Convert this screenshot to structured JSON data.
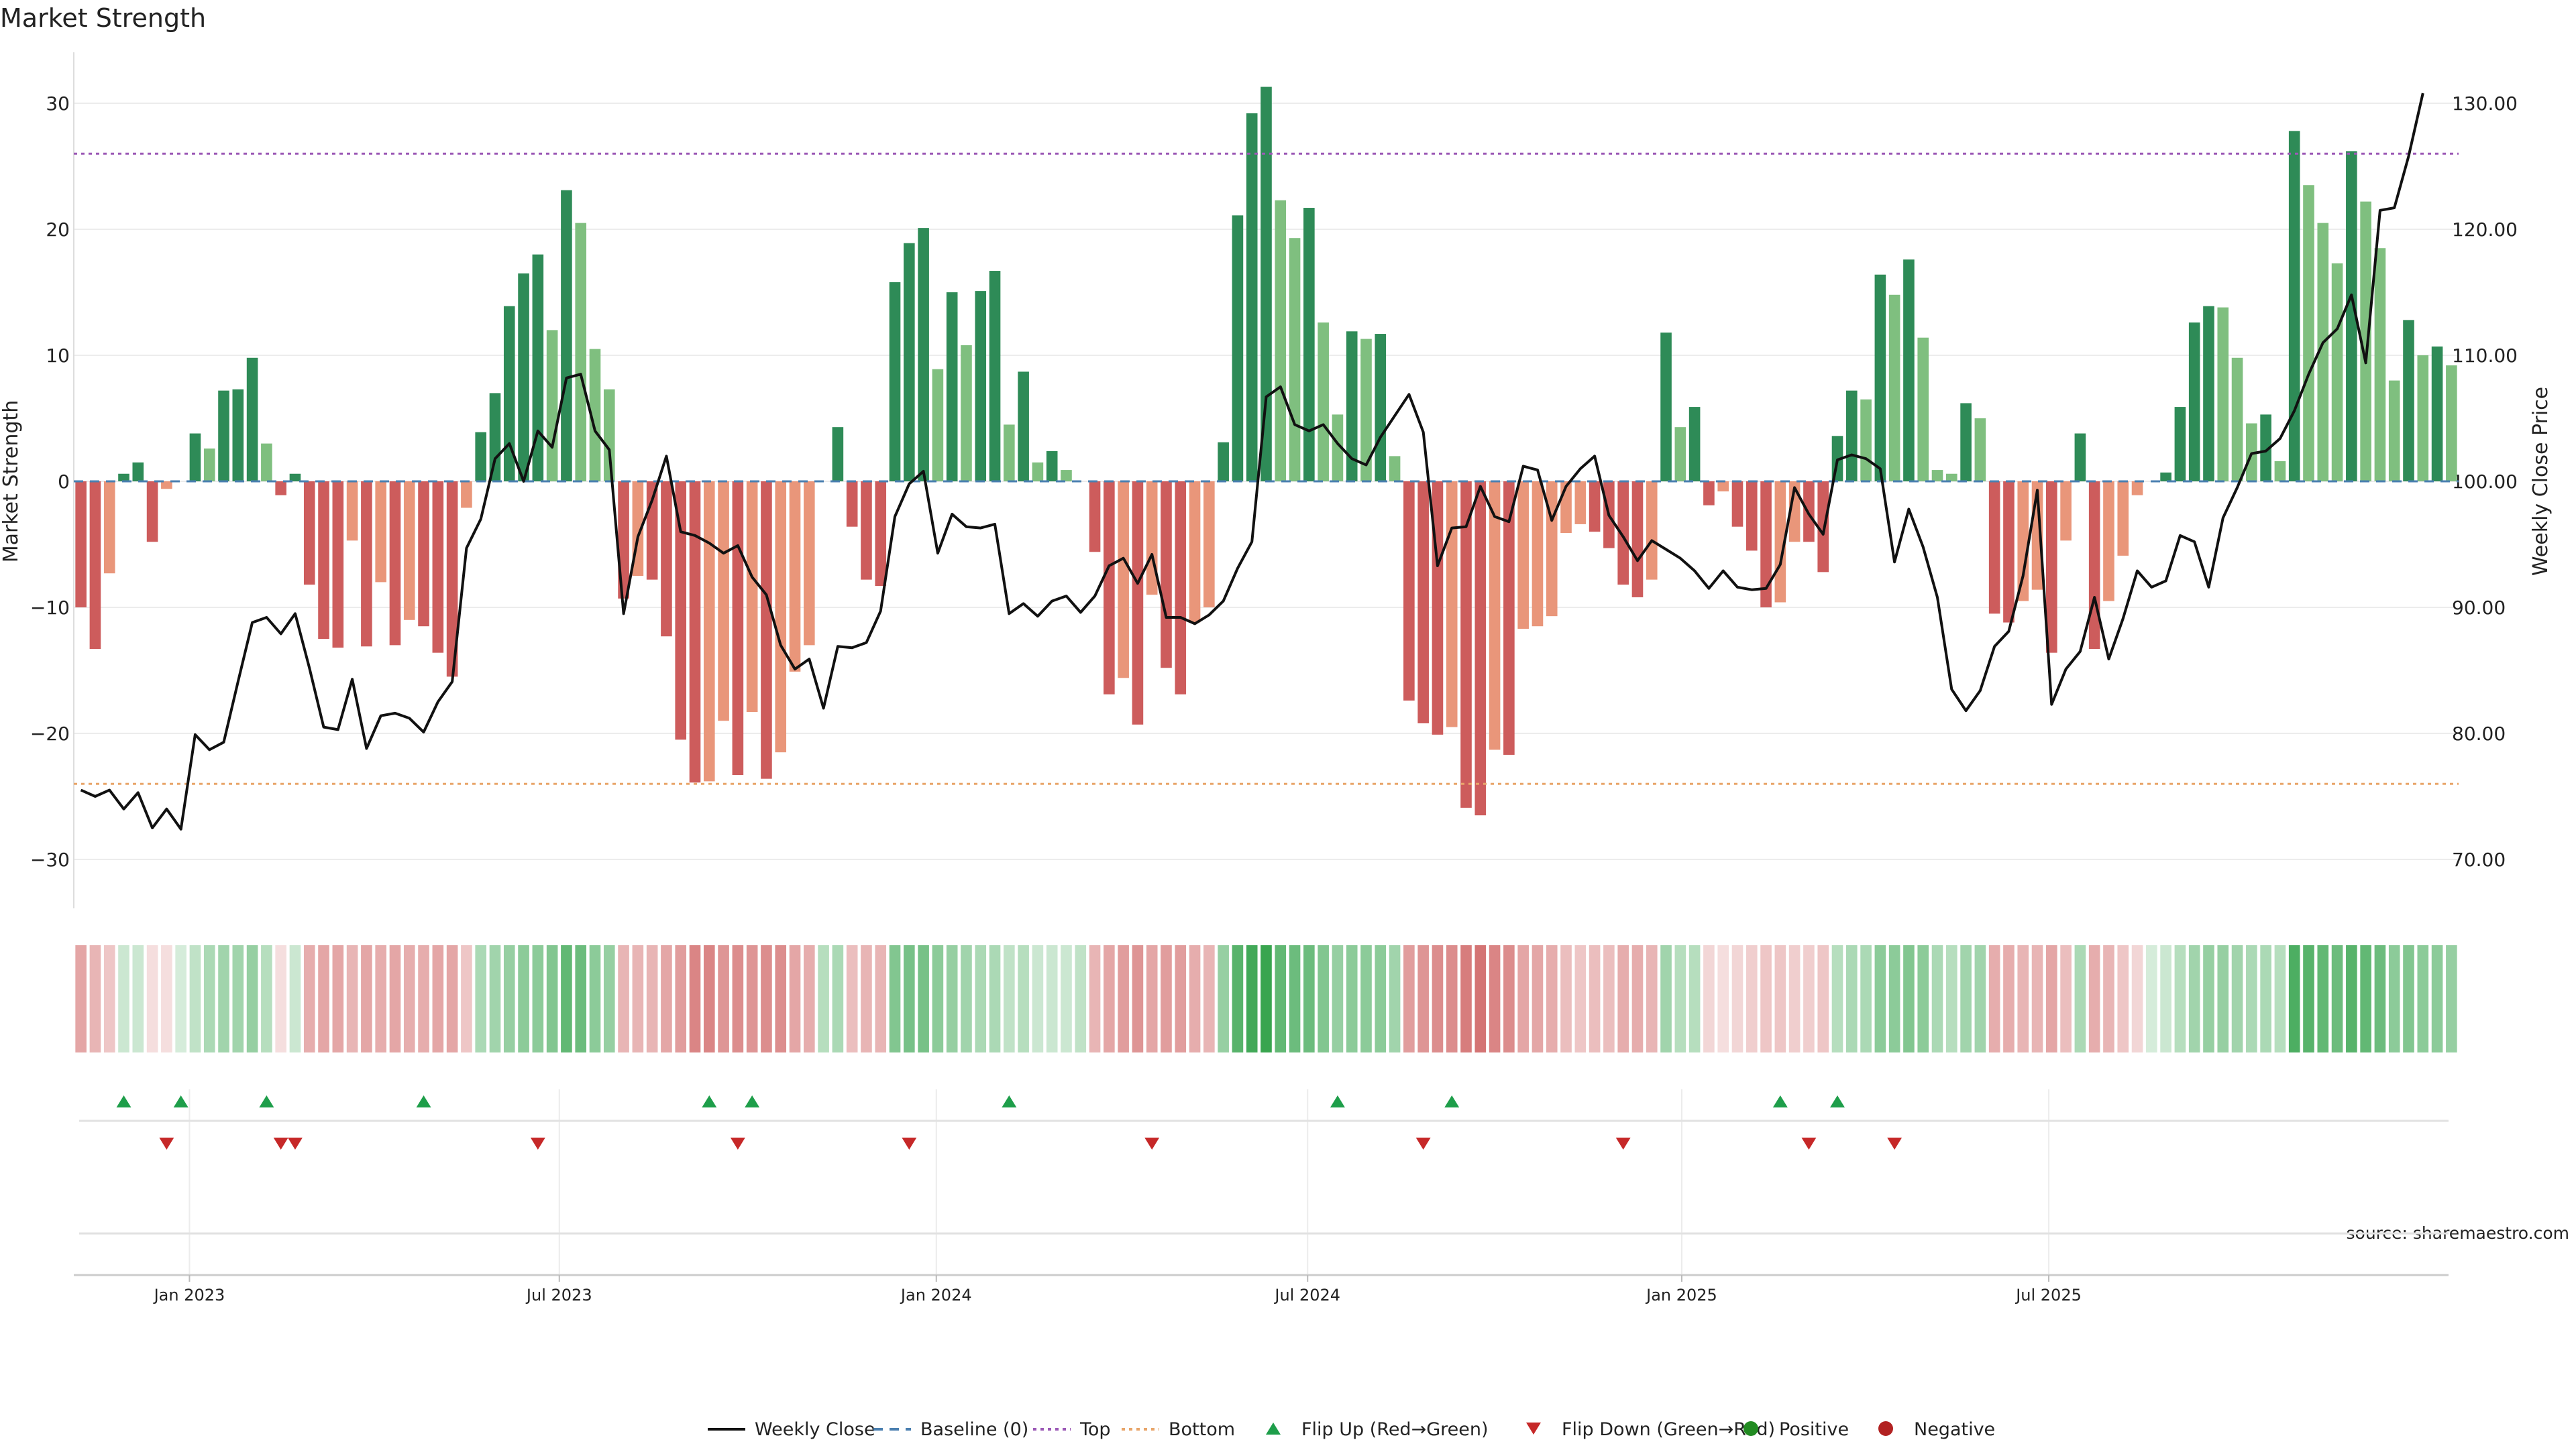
{
  "chart_data": {
    "type": "bar",
    "title": "Market Strength",
    "ylabel": "Market Strength",
    "y2label": "Weekly Close Price",
    "source": "source: sharemaestro.com",
    "ylim": [
      -34,
      34
    ],
    "y2lim": [
      66,
      134
    ],
    "yticks": [
      30,
      20,
      10,
      0,
      -10,
      -20,
      -30
    ],
    "y2ticks": [
      "130.00",
      "120.00",
      "110.00",
      "100.00",
      "90.00",
      "80.00",
      "70.00"
    ],
    "x_tick_labels": [
      {
        "label": "Jan 2023",
        "week": 7.6
      },
      {
        "label": "Jul 2023",
        "week": 33.5
      },
      {
        "label": "Jan 2024",
        "week": 59.9
      },
      {
        "label": "Jul 2024",
        "week": 85.9
      },
      {
        "label": "Jan 2025",
        "week": 112.1
      },
      {
        "label": "Jul 2025",
        "week": 137.8
      }
    ],
    "top_threshold": 26,
    "bottom_threshold": -24,
    "colors": {
      "dark_green": "#2e8b57",
      "light_green": "#7fbf7f",
      "dark_red": "#cd5c5c",
      "light_red": "#e9967a",
      "price_line": "#111111",
      "baseline": "#4a7fb0",
      "top": "#9b59b6",
      "bottom": "#e8a56a",
      "flip_up": "#1e9e4a",
      "flip_down": "#c62828",
      "positive": "#228b22",
      "negative": "#b22222"
    },
    "strength": [
      -10,
      -13.3,
      -7.3,
      0.6,
      1.5,
      -4.8,
      -0.6,
      0,
      3.8,
      2.6,
      7.2,
      7.3,
      9.8,
      3.0,
      -1.1,
      0.6,
      -8.2,
      -12.5,
      -13.2,
      -4.7,
      -13.1,
      -8.0,
      -13.0,
      -11.0,
      -11.5,
      -13.6,
      -15.5,
      -2.1,
      3.9,
      7.0,
      13.9,
      16.5,
      18.0,
      12.0,
      23.1,
      20.5,
      10.5,
      7.3,
      -9.3,
      -7.5,
      -7.8,
      -12.3,
      -20.5,
      -23.9,
      -23.8,
      -19.0,
      -23.3,
      -18.3,
      -23.6,
      -21.5,
      -15.1,
      -13.0,
      0,
      4.3,
      -3.6,
      -7.8,
      -8.3,
      15.8,
      18.9,
      20.1,
      8.9,
      15.0,
      10.8,
      15.1,
      16.7,
      4.5,
      8.7,
      1.5,
      2.4,
      0.9,
      0,
      -5.6,
      -16.9,
      -15.6,
      -19.3,
      -9.0,
      -14.8,
      -16.9,
      -11.2,
      -10.0,
      3.1,
      21.1,
      29.2,
      31.3,
      22.3,
      19.3,
      21.7,
      12.6,
      5.3,
      11.9,
      11.3,
      11.7,
      2.0,
      -17.4,
      -19.2,
      -20.1,
      -19.5,
      -25.9,
      -26.5,
      -21.3,
      -21.7,
      -11.7,
      -11.5,
      -10.7,
      -4.1,
      -3.4,
      -4.0,
      -5.3,
      -8.2,
      -9.2,
      -7.8,
      11.8,
      4.3,
      5.9,
      -1.9,
      -0.8,
      -3.6,
      -5.5,
      -10.0,
      -9.6,
      -4.8,
      -4.8,
      -7.2,
      3.6,
      7.2,
      6.5,
      16.4,
      14.8,
      17.6,
      11.4,
      0.9,
      0.6,
      6.2,
      5.0,
      -10.5,
      -11.2,
      -9.5,
      -8.6,
      -13.6,
      -4.7,
      3.8,
      -13.3,
      -9.5,
      -5.9,
      -1.1,
      0,
      0.7,
      5.9,
      12.6,
      13.9,
      13.8,
      9.8,
      4.6,
      5.3,
      1.6,
      27.8,
      23.5,
      20.5,
      17.3,
      26.2,
      22.2,
      18.5,
      8.0,
      12.8,
      10.0,
      10.7,
      9.2
    ],
    "price": [
      75.5,
      75.0,
      75.5,
      74.0,
      75.3,
      72.5,
      74.0,
      72.4,
      79.9,
      78.7,
      79.3,
      84.1,
      88.8,
      89.2,
      87.9,
      89.5,
      85.2,
      80.5,
      80.3,
      84.3,
      78.8,
      81.4,
      81.6,
      81.2,
      80.1,
      82.5,
      84.1,
      94.7,
      97.0,
      101.8,
      103.0,
      100.0,
      104.0,
      102.7,
      108.2,
      108.5,
      104.0,
      102.5,
      89.5,
      95.6,
      98.5,
      102.0,
      96.0,
      95.7,
      95.1,
      94.3,
      94.9,
      92.4,
      91.0,
      87.0,
      85.1,
      85.9,
      82.0,
      86.9,
      86.8,
      87.2,
      89.7,
      97.2,
      99.8,
      100.8,
      94.3,
      97.4,
      96.4,
      96.3,
      96.6,
      89.5,
      90.3,
      89.3,
      90.5,
      90.9,
      89.6,
      90.9,
      93.3,
      93.9,
      91.9,
      94.2,
      89.2,
      89.2,
      88.7,
      89.4,
      90.5,
      93.1,
      95.2,
      106.7,
      107.5,
      104.5,
      104.0,
      104.5,
      103.0,
      101.8,
      101.3,
      103.5,
      105.2,
      106.9,
      103.9,
      93.3,
      96.3,
      96.4,
      99.6,
      97.2,
      96.8,
      101.2,
      100.9,
      96.9,
      99.6,
      101.0,
      102.0,
      97.3,
      95.6,
      93.7,
      95.3,
      94.6,
      93.9,
      92.9,
      91.5,
      92.9,
      91.6,
      91.4,
      91.5,
      93.4,
      99.5,
      97.4,
      95.8,
      101.7,
      102.1,
      101.8,
      101.0,
      93.6,
      97.8,
      94.8,
      90.8,
      83.5,
      81.8,
      83.4,
      86.9,
      88.1,
      92.5,
      99.3,
      82.3,
      85.1,
      86.5,
      90.8,
      85.9,
      89.1,
      92.9,
      91.6,
      92.1,
      95.7,
      95.2,
      91.6,
      97.1,
      99.5,
      102.2,
      102.4,
      103.4,
      105.6,
      108.5,
      111.0,
      112.1,
      114.8,
      109.4,
      121.5,
      121.7,
      125.8,
      130.8
    ],
    "heat_intensity": [
      0.55,
      0.45,
      0.35,
      0.25,
      0.25,
      0.2,
      0.2,
      0.2,
      0.3,
      0.4,
      0.45,
      0.45,
      0.5,
      0.35,
      0.2,
      0.25,
      0.5,
      0.55,
      0.55,
      0.45,
      0.55,
      0.5,
      0.55,
      0.5,
      0.5,
      0.55,
      0.55,
      0.35,
      0.4,
      0.45,
      0.5,
      0.55,
      0.55,
      0.6,
      0.75,
      0.7,
      0.55,
      0.5,
      0.45,
      0.45,
      0.45,
      0.55,
      0.6,
      0.75,
      0.75,
      0.65,
      0.7,
      0.65,
      0.7,
      0.7,
      0.55,
      0.5,
      0.35,
      0.4,
      0.4,
      0.45,
      0.45,
      0.6,
      0.65,
      0.65,
      0.55,
      0.5,
      0.45,
      0.4,
      0.4,
      0.3,
      0.35,
      0.25,
      0.25,
      0.25,
      0.3,
      0.45,
      0.55,
      0.6,
      0.65,
      0.55,
      0.6,
      0.6,
      0.5,
      0.45,
      0.5,
      0.8,
      0.9,
      0.95,
      0.75,
      0.7,
      0.7,
      0.6,
      0.5,
      0.55,
      0.55,
      0.55,
      0.45,
      0.6,
      0.65,
      0.7,
      0.7,
      0.8,
      0.85,
      0.75,
      0.7,
      0.55,
      0.55,
      0.5,
      0.4,
      0.35,
      0.4,
      0.4,
      0.5,
      0.5,
      0.45,
      0.45,
      0.35,
      0.35,
      0.25,
      0.2,
      0.25,
      0.3,
      0.35,
      0.35,
      0.3,
      0.3,
      0.35,
      0.35,
      0.4,
      0.4,
      0.55,
      0.55,
      0.6,
      0.55,
      0.4,
      0.35,
      0.45,
      0.45,
      0.5,
      0.5,
      0.45,
      0.45,
      0.55,
      0.4,
      0.4,
      0.5,
      0.45,
      0.35,
      0.25,
      0.2,
      0.25,
      0.35,
      0.45,
      0.5,
      0.5,
      0.45,
      0.4,
      0.4,
      0.35,
      0.85,
      0.8,
      0.75,
      0.7,
      0.8,
      0.75,
      0.7,
      0.55,
      0.6,
      0.55,
      0.55,
      0.5
    ],
    "flip_up_weeks": [
      3,
      7,
      13,
      24,
      44,
      47,
      65,
      88,
      96,
      119,
      123
    ],
    "flip_down_weeks": [
      6,
      14,
      15,
      32,
      46,
      58,
      75,
      94,
      108,
      121,
      127
    ],
    "legend": [
      {
        "key": "weekly_close",
        "label": "Weekly Close"
      },
      {
        "key": "baseline",
        "label": "Baseline (0)"
      },
      {
        "key": "top",
        "label": "Top"
      },
      {
        "key": "bottom",
        "label": "Bottom"
      },
      {
        "key": "flip_up",
        "label": "Flip Up (Red→Green)"
      },
      {
        "key": "flip_down",
        "label": "Flip Down (Green→Red)"
      },
      {
        "key": "positive",
        "label": "Positive"
      },
      {
        "key": "negative",
        "label": "Negative"
      }
    ]
  }
}
